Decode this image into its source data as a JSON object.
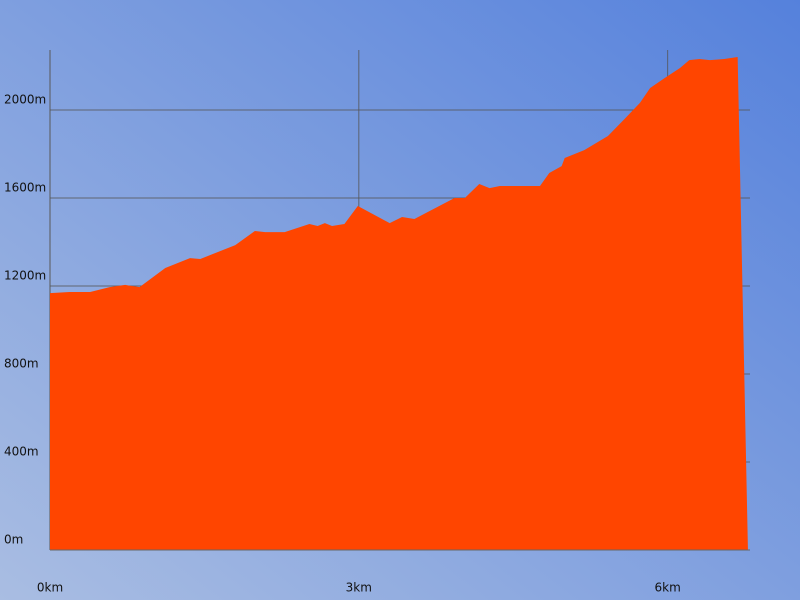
{
  "chart_data": {
    "type": "area",
    "color": "#ff4500",
    "grid": true,
    "x": [
      0,
      0.19,
      0.39,
      0.58,
      0.73,
      0.87,
      1.12,
      1.36,
      1.46,
      1.8,
      1.99,
      2.09,
      2.28,
      2.52,
      2.6,
      2.67,
      2.74,
      2.86,
      2.99,
      3.3,
      3.42,
      3.54,
      3.93,
      4.03,
      4.17,
      4.27,
      4.37,
      4.76,
      4.85,
      4.97,
      5.0,
      5.19,
      5.42,
      5.58,
      5.73,
      5.83,
      5.97,
      6.12,
      6.21,
      6.31,
      6.41,
      6.55,
      6.68,
      6.78
    ],
    "values": [
      1168,
      1173,
      1173,
      1195,
      1205,
      1195,
      1282,
      1327,
      1323,
      1386,
      1450,
      1445,
      1445,
      1482,
      1473,
      1486,
      1473,
      1482,
      1564,
      1486,
      1514,
      1505,
      1600,
      1600,
      1664,
      1645,
      1655,
      1655,
      1714,
      1745,
      1782,
      1818,
      1882,
      1959,
      2032,
      2100,
      2145,
      2191,
      2227,
      2232,
      2227,
      2232,
      2241,
      0
    ],
    "xlim": [
      0,
      6.8
    ],
    "xticks": [
      {
        "value": 0,
        "label": "0km"
      },
      {
        "value": 3,
        "label": "3km"
      },
      {
        "value": 6,
        "label": "6km"
      }
    ],
    "ylim": [
      0,
      2273
    ],
    "yticks": [
      {
        "value": 0,
        "label": "0m"
      },
      {
        "value": 400,
        "label": "400m"
      },
      {
        "value": 800,
        "label": "800m"
      },
      {
        "value": 1200,
        "label": "1200m"
      },
      {
        "value": 1600,
        "label": "1600m"
      },
      {
        "value": 2000,
        "label": "2000m"
      }
    ]
  }
}
